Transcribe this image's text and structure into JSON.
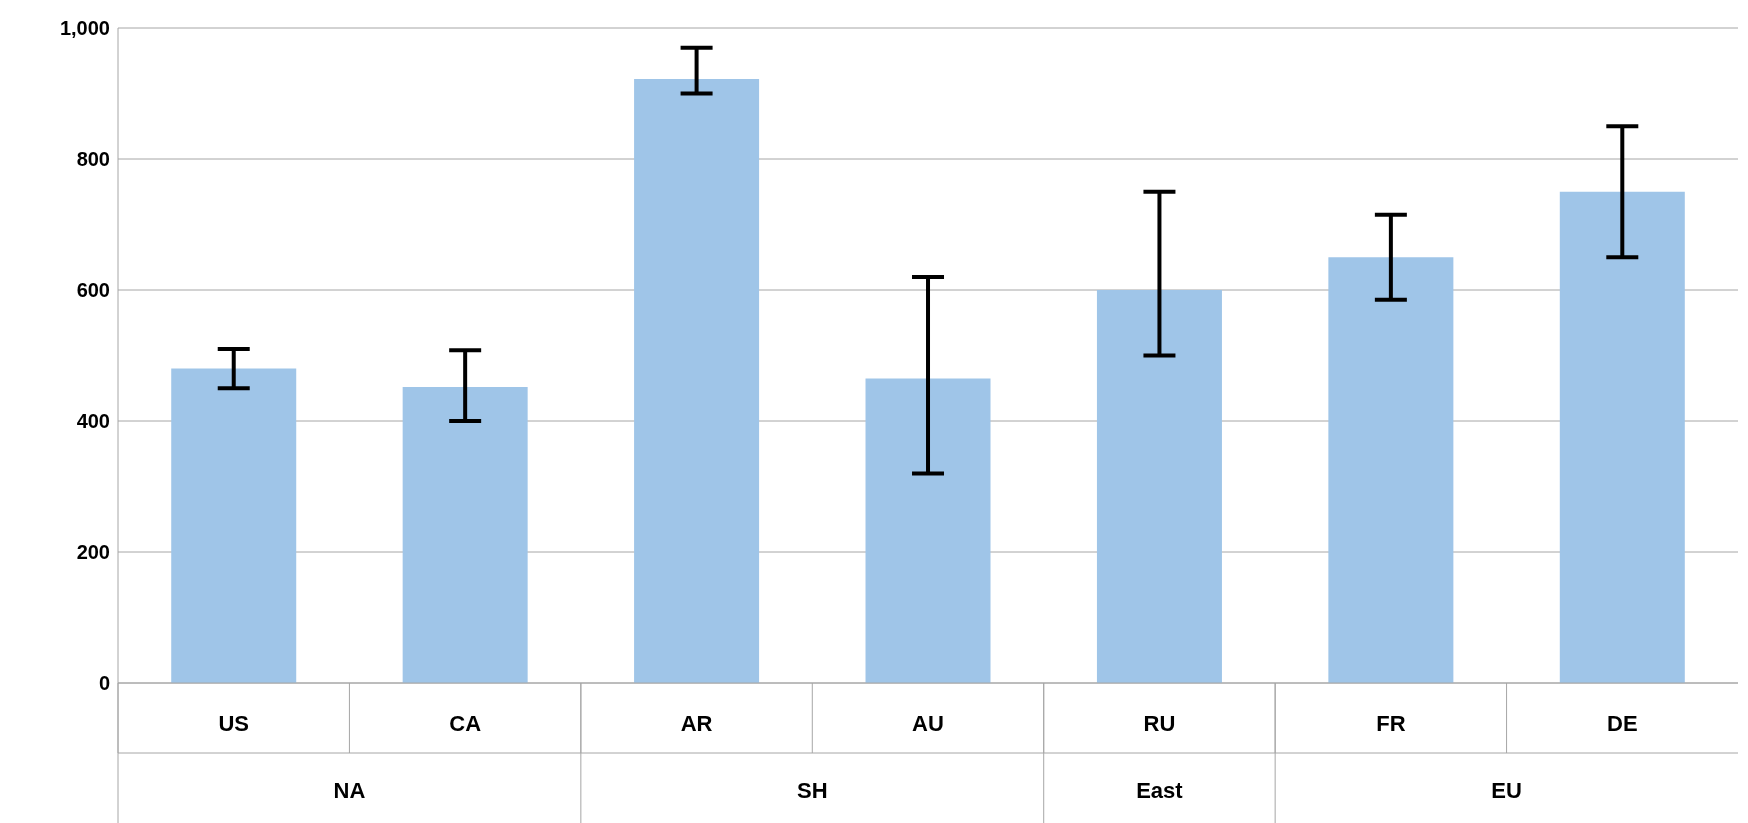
{
  "chart_data": {
    "type": "bar",
    "categories": [
      "US",
      "CA",
      "AR",
      "AU",
      "RU",
      "FR",
      "DE"
    ],
    "values": [
      480,
      452,
      922,
      465,
      600,
      650,
      750
    ],
    "errors": [
      [
        450,
        510
      ],
      [
        400,
        508
      ],
      [
        900,
        970
      ],
      [
        320,
        620
      ],
      [
        500,
        750
      ],
      [
        585,
        715
      ],
      [
        650,
        850
      ]
    ],
    "color": "#9fc5e8",
    "ylim": [
      0,
      1000
    ],
    "yticks": [
      0,
      200,
      400,
      600,
      800,
      {
        "value": 1000,
        "label": "1,000"
      }
    ],
    "grid": "y",
    "annotations": [
      "NA",
      "SH",
      "East",
      "EU"
    ]
  }
}
